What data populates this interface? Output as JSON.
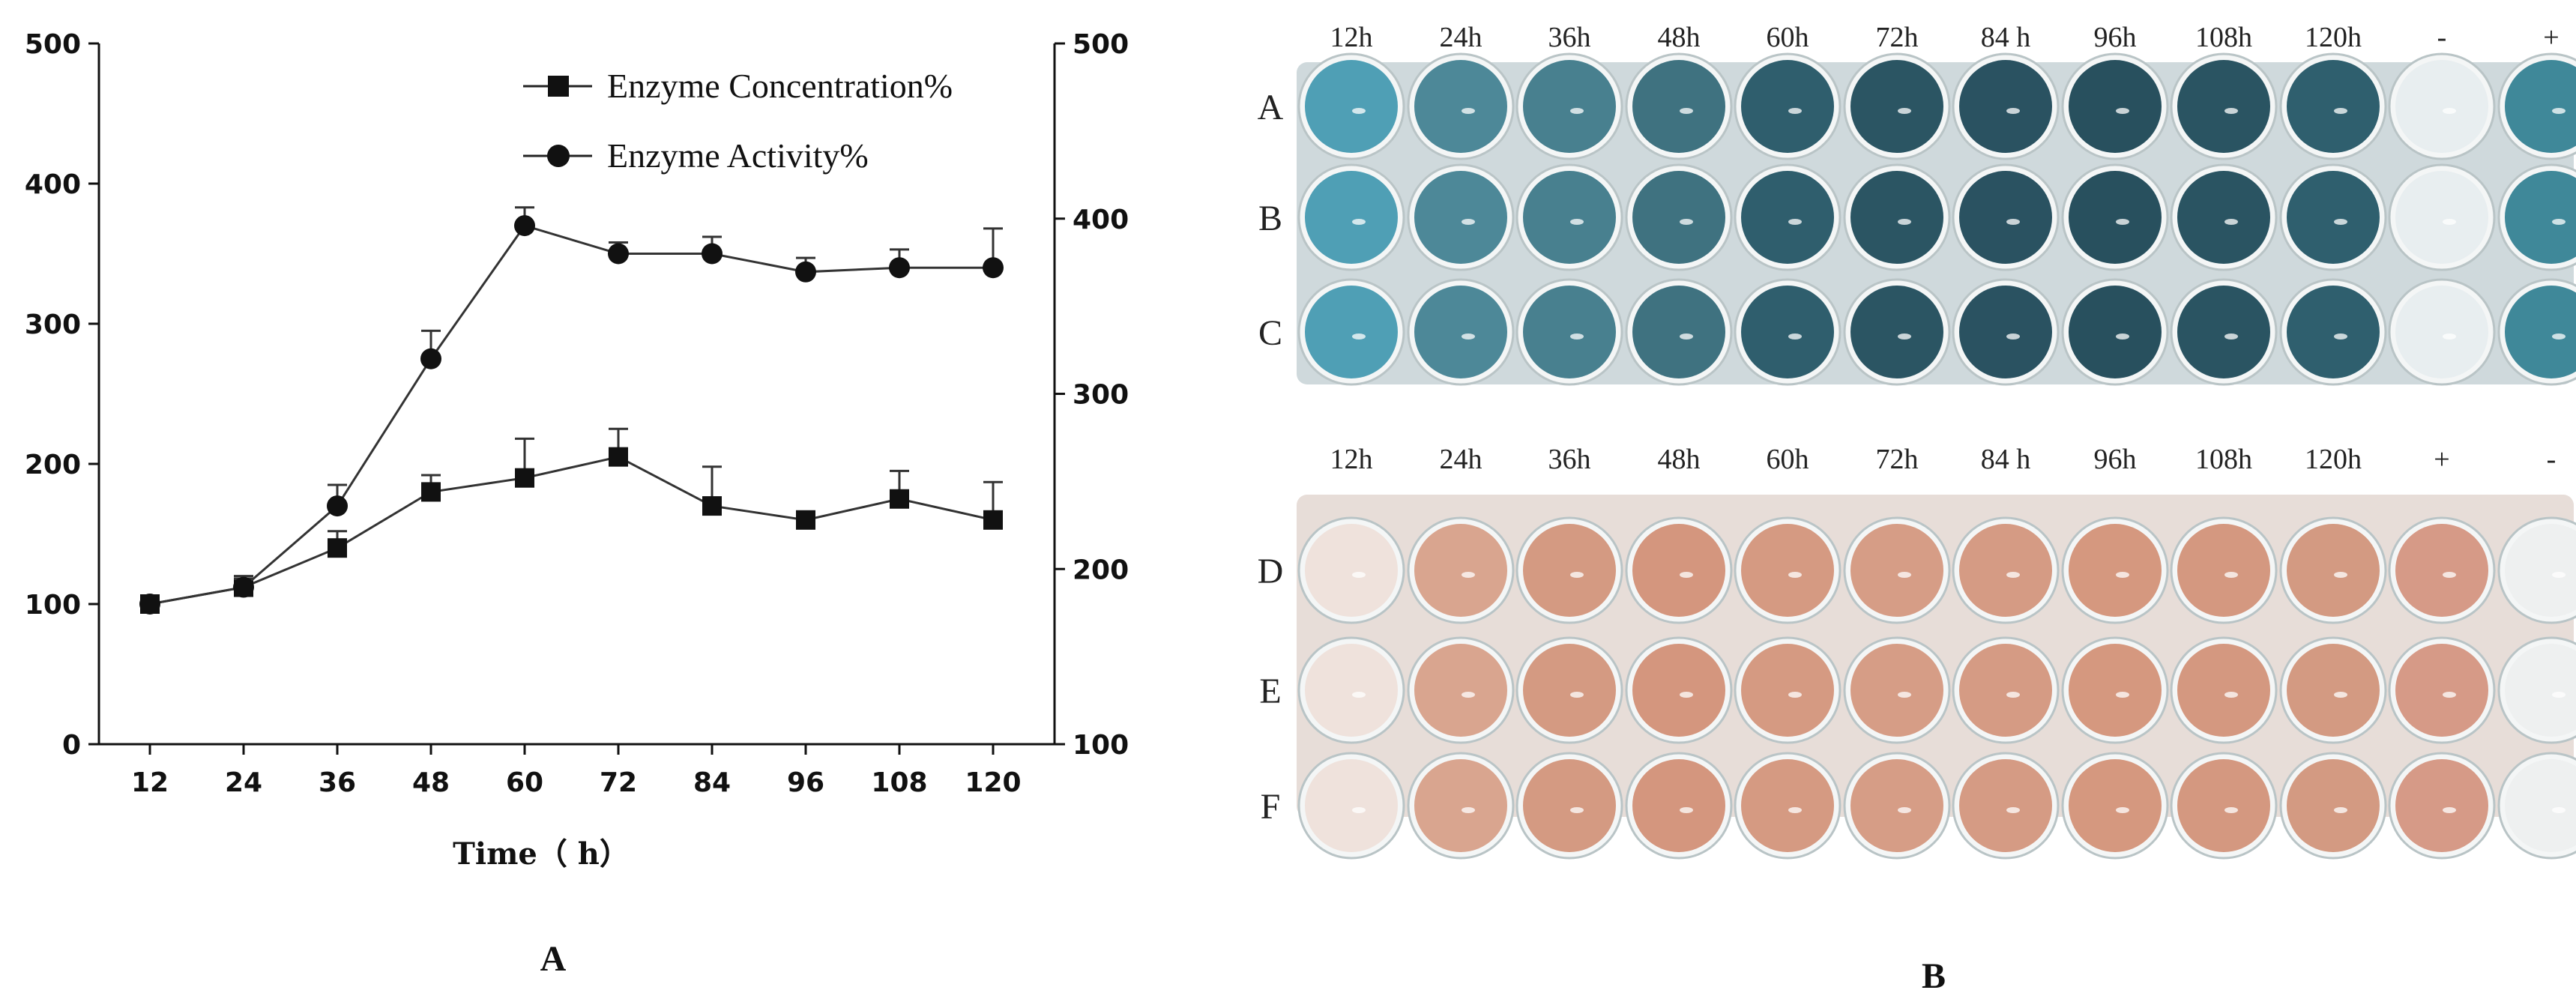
{
  "chart_data": {
    "type": "line",
    "x": [
      12,
      24,
      36,
      48,
      60,
      72,
      84,
      96,
      108,
      120
    ],
    "xlabel": "Time（ h）",
    "ylim_left": [
      0,
      500
    ],
    "ylim_right": [
      100,
      500
    ],
    "y_ticks_left": [
      "0",
      "100",
      "200",
      "300",
      "400",
      "500"
    ],
    "y_ticks_right": [
      "100",
      "200",
      "300",
      "400",
      "500"
    ],
    "x_ticks": [
      "12",
      "24",
      "36",
      "48",
      "60",
      "72",
      "84",
      "96",
      "108",
      "120"
    ],
    "series": [
      {
        "name": "Enzyme Concentration%",
        "marker": "square",
        "axis": "left",
        "values": [
          100,
          112,
          140,
          180,
          190,
          205,
          170,
          160,
          175,
          160
        ],
        "errors": [
          0,
          8,
          12,
          12,
          28,
          20,
          28,
          6,
          20,
          27
        ]
      },
      {
        "name": "Enzyme Activity%",
        "marker": "circle",
        "axis": "left",
        "values": [
          100,
          112,
          170,
          275,
          370,
          350,
          350,
          337,
          340,
          340
        ],
        "errors": [
          0,
          6,
          15,
          20,
          13,
          8,
          12,
          10,
          13,
          28
        ]
      }
    ],
    "panel_label": "A"
  },
  "plates": {
    "panel_label": "B",
    "top": {
      "columns": [
        "12h",
        "24h",
        "36h",
        "48h",
        "60h",
        "72h",
        "84 h",
        "96h",
        "108h",
        "120h",
        "-",
        "+"
      ],
      "rows": [
        "A",
        "B",
        "C"
      ],
      "well_colors": [
        "#4f9fb5",
        "#4d8898",
        "#48808f",
        "#3f7280",
        "#2f5e6d",
        "#2b5563",
        "#2a5261",
        "#28505e",
        "#2a5462",
        "#2f5f6e",
        "#e8eef0",
        "#3f8899"
      ],
      "plate_color": "#cfd9dc"
    },
    "bottom": {
      "columns": [
        "12h",
        "24h",
        "36h",
        "48h",
        "60h",
        "72h",
        "84 h",
        "96h",
        "108h",
        "120h",
        "+",
        "-"
      ],
      "rows": [
        "D",
        "E",
        "F"
      ],
      "well_colors": [
        "#efe2dc",
        "#d9a58f",
        "#d49a82",
        "#d4967e",
        "#d59a82",
        "#d69d86",
        "#d59b84",
        "#d5987f",
        "#d49880",
        "#d39a82",
        "#d69a87",
        "#eef0f0"
      ],
      "plate_color": "#e7ddd8"
    }
  }
}
